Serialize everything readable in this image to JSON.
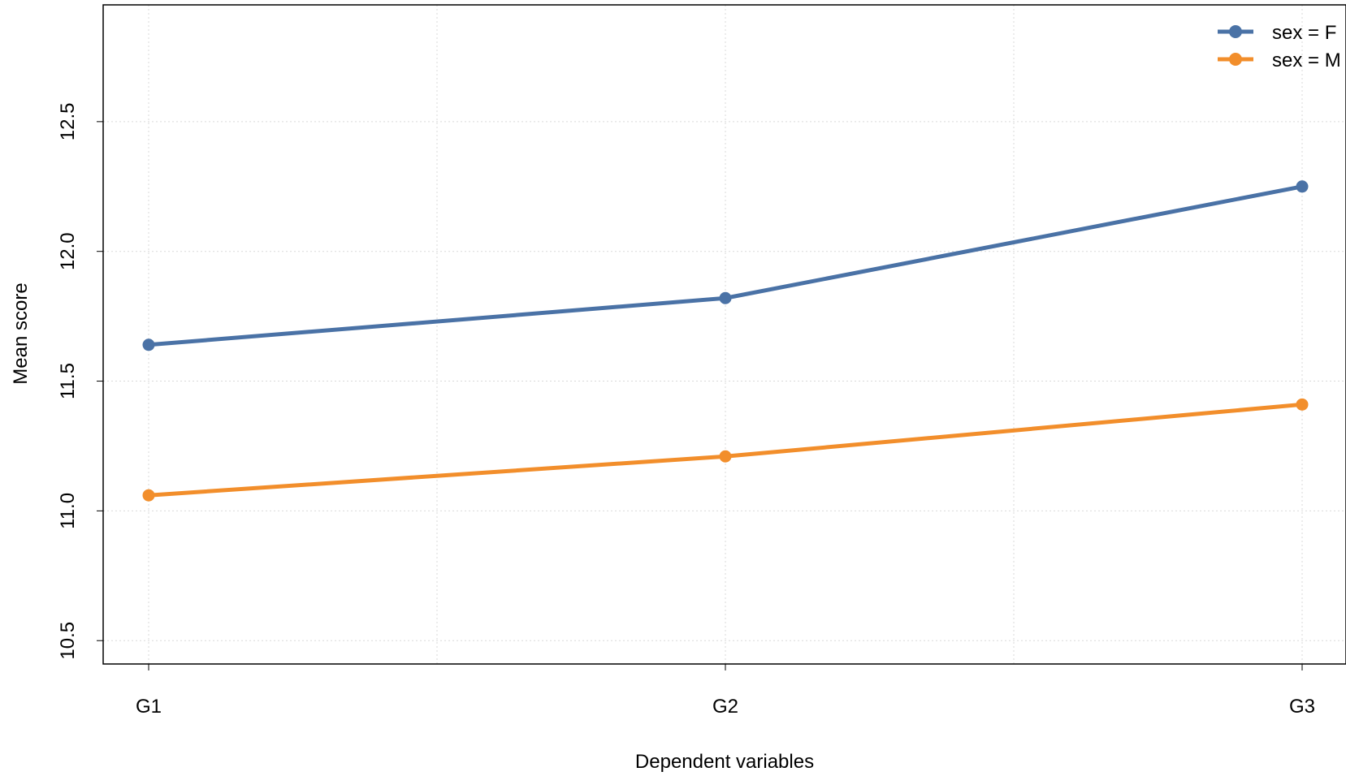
{
  "chart_data": {
    "type": "line",
    "title": "",
    "xlabel": "Dependent variables",
    "ylabel": "Mean score",
    "categories": [
      "G1",
      "G2",
      "G3"
    ],
    "y_ticks": [
      "10.5",
      "11.0",
      "11.5",
      "12.0",
      "12.5"
    ],
    "ylim": [
      10.41,
      12.95
    ],
    "grid": true,
    "legend_position": "top-right",
    "series": [
      {
        "name": "sex = F",
        "color": "#4a72a6",
        "values": [
          11.64,
          11.82,
          12.25
        ]
      },
      {
        "name": "sex = M",
        "color": "#f28e2b",
        "values": [
          11.06,
          11.21,
          11.41
        ]
      }
    ]
  }
}
